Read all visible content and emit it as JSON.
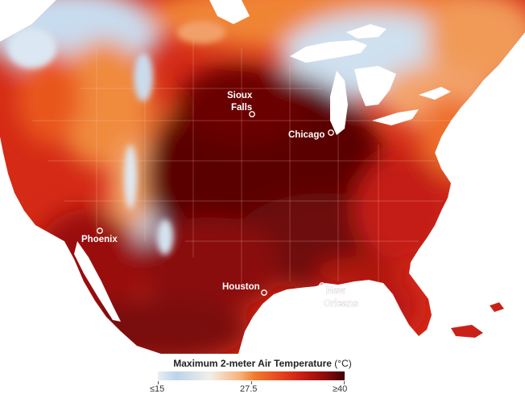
{
  "map": {
    "cities": [
      {
        "id": "sioux-falls",
        "line1": "Sioux",
        "line2": "Falls"
      },
      {
        "id": "chicago",
        "line1": "Chicago"
      },
      {
        "id": "phoenix",
        "line1": "Phoenix"
      },
      {
        "id": "houston",
        "line1": "Houston"
      },
      {
        "id": "new-orleans",
        "line1": "New",
        "line2": "Orleans"
      }
    ]
  },
  "legend": {
    "title_bold": "Maximum 2-meter Air Temperature",
    "title_unit": " (°C)",
    "min_label": "≤15",
    "mid_label": "27.5",
    "max_label": "≥40",
    "colors": [
      "#e8eef4",
      "#bcd4ea",
      "#f2efe9",
      "#f7b27a",
      "#f07a2a",
      "#e8461e",
      "#c61b12",
      "#8c0a0a",
      "#3e0303"
    ]
  }
}
